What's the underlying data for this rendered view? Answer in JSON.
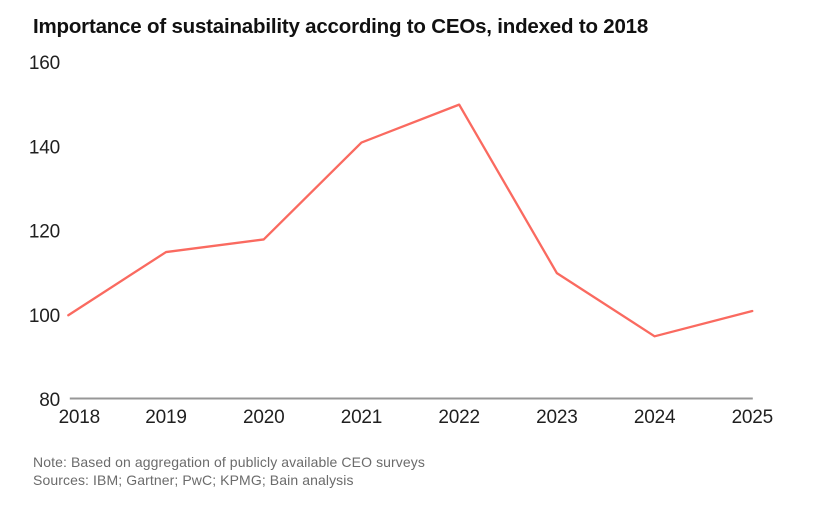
{
  "title": "Importance of sustainability according to CEOs, indexed to 2018",
  "footer": {
    "note": "Note: Based on aggregation of publicly available CEO surveys",
    "sources": "Sources: IBM; Gartner; PwC; KPMG; Bain analysis"
  },
  "chart_data": {
    "type": "line",
    "title": "Importance of sustainability according to CEOs, indexed to 2018",
    "categories": [
      "2018",
      "2019",
      "2020",
      "2021",
      "2022",
      "2023",
      "2024",
      "2025"
    ],
    "values": [
      100,
      115,
      118,
      141,
      150,
      110,
      95,
      101
    ],
    "xlabel": "",
    "ylabel": "",
    "ylim": [
      80,
      160
    ],
    "yticks": [
      80,
      100,
      120,
      140,
      160
    ],
    "grid": false,
    "legend": "none",
    "line_color": "#fa6a60",
    "axis_color": "#979797",
    "tick_label_color": "#1f1f1f"
  }
}
